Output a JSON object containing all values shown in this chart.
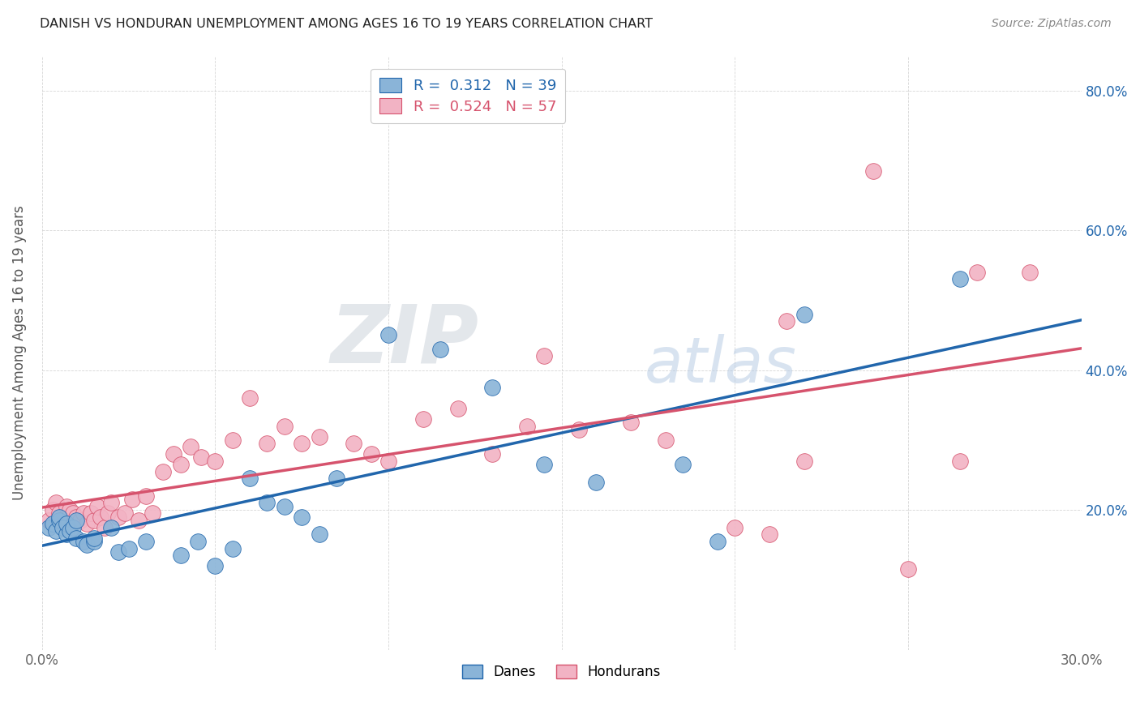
{
  "title": "DANISH VS HONDURAN UNEMPLOYMENT AMONG AGES 16 TO 19 YEARS CORRELATION CHART",
  "source": "Source: ZipAtlas.com",
  "ylabel": "Unemployment Among Ages 16 to 19 years",
  "xlabel": "",
  "xlim": [
    0.0,
    0.3
  ],
  "ylim": [
    0.0,
    0.85
  ],
  "x_tick_positions": [
    0.0,
    0.05,
    0.1,
    0.15,
    0.2,
    0.25,
    0.3
  ],
  "x_tick_labels": [
    "0.0%",
    "",
    "",
    "",
    "",
    "",
    "30.0%"
  ],
  "y_tick_positions": [
    0.0,
    0.2,
    0.4,
    0.6,
    0.8
  ],
  "y_tick_labels_right": [
    "",
    "20.0%",
    "40.0%",
    "60.0%",
    "80.0%"
  ],
  "danes_color": "#8ab4d8",
  "hondurans_color": "#f2b3c4",
  "danes_R": "0.312",
  "danes_N": "39",
  "hondurans_R": "0.524",
  "hondurans_N": "57",
  "danes_line_color": "#2166ac",
  "hondurans_line_color": "#d6536d",
  "legend_label_danes": "Danes",
  "legend_label_hondurans": "Hondurans",
  "watermark_zip": "ZIP",
  "watermark_atlas": "atlas",
  "danes_x": [
    0.002,
    0.003,
    0.004,
    0.005,
    0.005,
    0.006,
    0.007,
    0.007,
    0.008,
    0.009,
    0.01,
    0.01,
    0.012,
    0.013,
    0.015,
    0.015,
    0.02,
    0.022,
    0.025,
    0.03,
    0.04,
    0.045,
    0.05,
    0.055,
    0.06,
    0.065,
    0.07,
    0.075,
    0.08,
    0.085,
    0.1,
    0.115,
    0.13,
    0.145,
    0.16,
    0.185,
    0.195,
    0.22,
    0.265
  ],
  "danes_y": [
    0.175,
    0.18,
    0.17,
    0.185,
    0.19,
    0.175,
    0.165,
    0.18,
    0.17,
    0.175,
    0.16,
    0.185,
    0.155,
    0.15,
    0.155,
    0.16,
    0.175,
    0.14,
    0.145,
    0.155,
    0.135,
    0.155,
    0.12,
    0.145,
    0.245,
    0.21,
    0.205,
    0.19,
    0.165,
    0.245,
    0.45,
    0.43,
    0.375,
    0.265,
    0.24,
    0.265,
    0.155,
    0.48,
    0.53
  ],
  "hondurans_x": [
    0.002,
    0.003,
    0.004,
    0.005,
    0.006,
    0.007,
    0.008,
    0.009,
    0.01,
    0.011,
    0.012,
    0.013,
    0.014,
    0.015,
    0.016,
    0.017,
    0.018,
    0.019,
    0.02,
    0.022,
    0.024,
    0.026,
    0.028,
    0.03,
    0.032,
    0.035,
    0.038,
    0.04,
    0.043,
    0.046,
    0.05,
    0.055,
    0.06,
    0.065,
    0.07,
    0.075,
    0.08,
    0.09,
    0.095,
    0.1,
    0.11,
    0.12,
    0.13,
    0.14,
    0.145,
    0.155,
    0.17,
    0.18,
    0.2,
    0.21,
    0.215,
    0.22,
    0.24,
    0.25,
    0.265,
    0.27,
    0.285
  ],
  "hondurans_y": [
    0.185,
    0.2,
    0.21,
    0.195,
    0.185,
    0.205,
    0.2,
    0.195,
    0.19,
    0.185,
    0.195,
    0.18,
    0.195,
    0.185,
    0.205,
    0.19,
    0.175,
    0.195,
    0.21,
    0.19,
    0.195,
    0.215,
    0.185,
    0.22,
    0.195,
    0.255,
    0.28,
    0.265,
    0.29,
    0.275,
    0.27,
    0.3,
    0.36,
    0.295,
    0.32,
    0.295,
    0.305,
    0.295,
    0.28,
    0.27,
    0.33,
    0.345,
    0.28,
    0.32,
    0.42,
    0.315,
    0.325,
    0.3,
    0.175,
    0.165,
    0.47,
    0.27,
    0.685,
    0.115,
    0.27,
    0.54,
    0.54
  ],
  "background_color": "#ffffff",
  "grid_color": "#cccccc"
}
